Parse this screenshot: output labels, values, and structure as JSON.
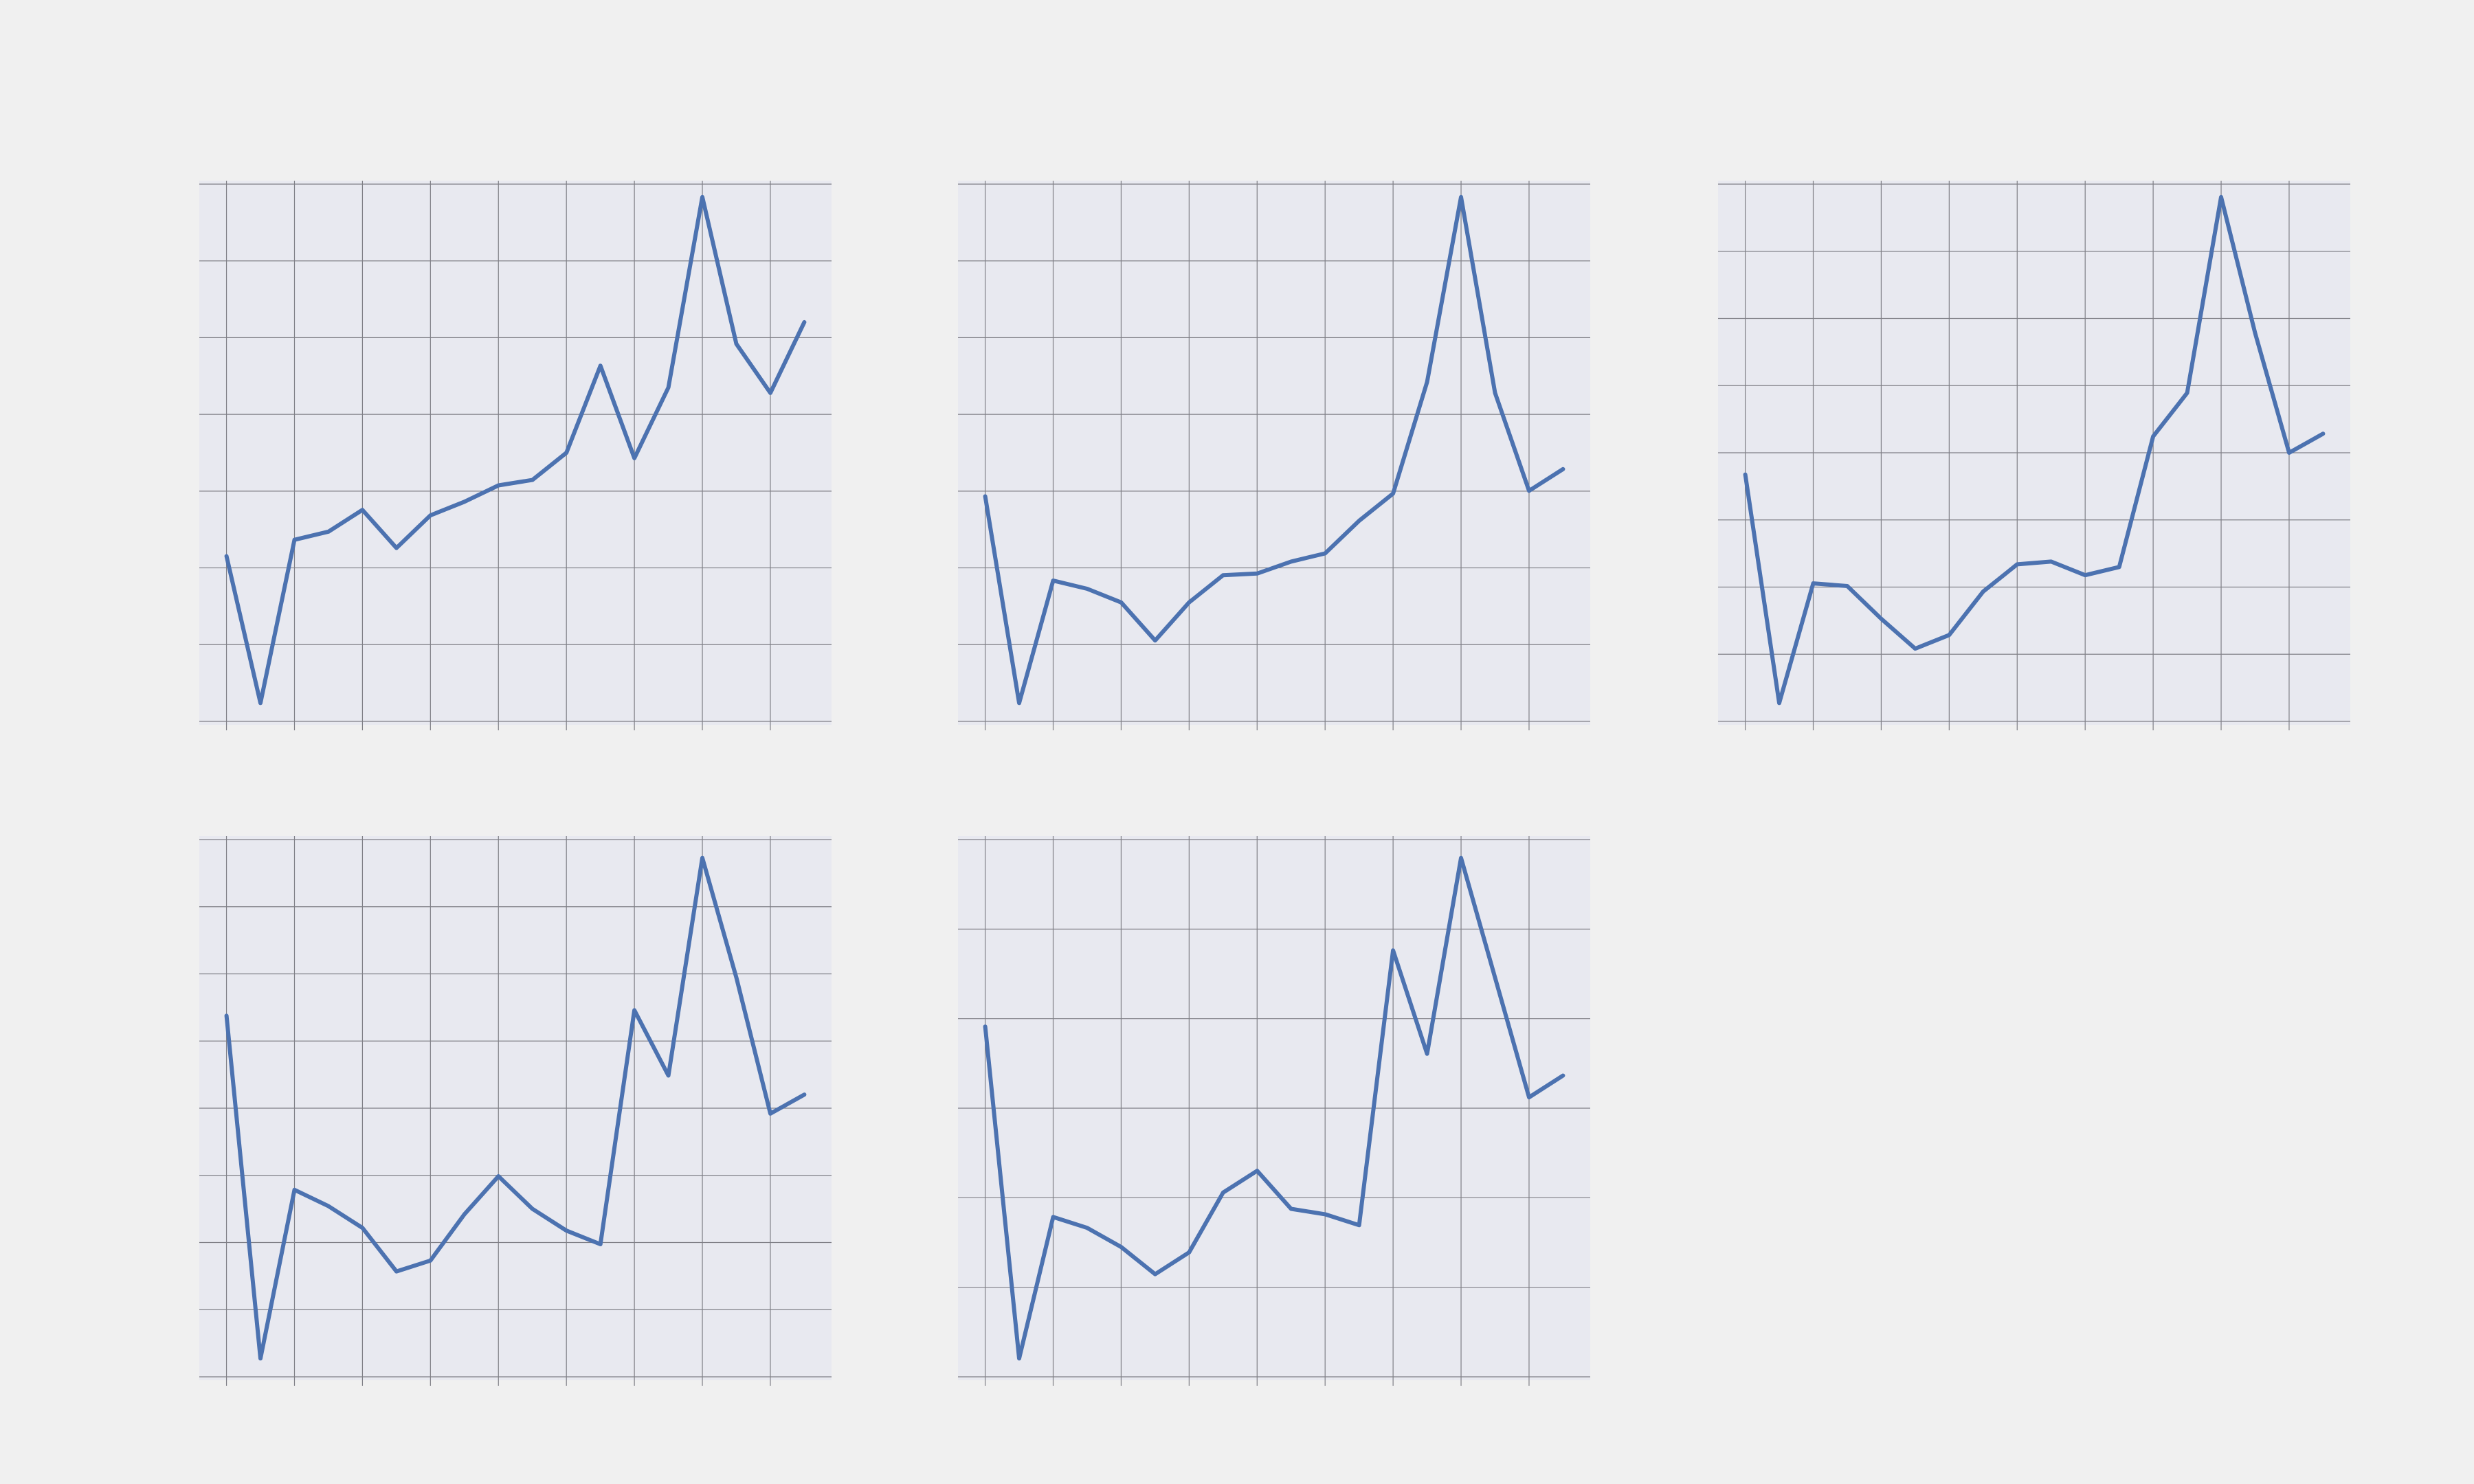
{
  "figure": {
    "background": "#f0f0f0",
    "panel_background": "#e8e9f0",
    "grid_color": "#7f7f86",
    "line_color": "#4c72b0"
  },
  "chart_data": [
    {
      "type": "line",
      "x": [
        0,
        1,
        2,
        3,
        4,
        5,
        6,
        7,
        8,
        9,
        10,
        11,
        12,
        13,
        14,
        15,
        16,
        17
      ],
      "series": [
        {
          "values": [
            0.31,
            0.04,
            0.34,
            0.355,
            0.395,
            0.325,
            0.385,
            0.41,
            0.44,
            0.45,
            0.5,
            0.66,
            0.49,
            0.62,
            0.97,
            0.7,
            0.61,
            0.74
          ]
        }
      ],
      "grid": true,
      "ylim": [
        0.0,
        1.0
      ]
    },
    {
      "type": "line",
      "x": [
        0,
        1,
        2,
        3,
        4,
        5,
        6,
        7,
        8,
        9,
        10,
        11,
        12,
        13,
        14,
        15,
        16,
        17
      ],
      "series": [
        {
          "values": [
            0.42,
            0.04,
            0.265,
            0.25,
            0.225,
            0.155,
            0.225,
            0.275,
            0.278,
            0.3,
            0.315,
            0.375,
            0.425,
            0.63,
            0.97,
            0.61,
            0.43,
            0.47
          ]
        }
      ],
      "grid": true,
      "ylim": [
        0.0,
        1.0
      ]
    },
    {
      "type": "line",
      "x": [
        0,
        1,
        2,
        3,
        4,
        5,
        6,
        7,
        8,
        9,
        10,
        11,
        12,
        13,
        14,
        15,
        16,
        17
      ],
      "series": [
        {
          "values": [
            0.46,
            0.04,
            0.26,
            0.255,
            0.195,
            0.14,
            0.165,
            0.245,
            0.295,
            0.3,
            0.275,
            0.29,
            0.53,
            0.61,
            0.97,
            0.72,
            0.5,
            0.535
          ]
        }
      ],
      "grid": true,
      "ylim": [
        0.0,
        1.0
      ]
    },
    {
      "type": "line",
      "x": [
        0,
        1,
        2,
        3,
        4,
        5,
        6,
        7,
        8,
        9,
        10,
        11,
        12,
        13,
        14,
        15,
        16,
        17
      ],
      "series": [
        {
          "values": [
            0.67,
            0.04,
            0.35,
            0.32,
            0.28,
            0.2,
            0.22,
            0.305,
            0.375,
            0.315,
            0.275,
            0.25,
            0.68,
            0.56,
            0.96,
            0.74,
            0.49,
            0.525
          ]
        }
      ],
      "grid": true,
      "ylim": [
        0.0,
        1.0
      ]
    },
    {
      "type": "line",
      "x": [
        0,
        1,
        2,
        3,
        4,
        5,
        6,
        7,
        8,
        9,
        10,
        11,
        12,
        13,
        14,
        15,
        16,
        17
      ],
      "series": [
        {
          "values": [
            0.65,
            0.04,
            0.3,
            0.28,
            0.245,
            0.195,
            0.235,
            0.345,
            0.385,
            0.315,
            0.305,
            0.285,
            0.79,
            0.6,
            0.96,
            0.74,
            0.52,
            0.56
          ]
        }
      ],
      "grid": true,
      "ylim": [
        0.0,
        1.0
      ]
    }
  ]
}
